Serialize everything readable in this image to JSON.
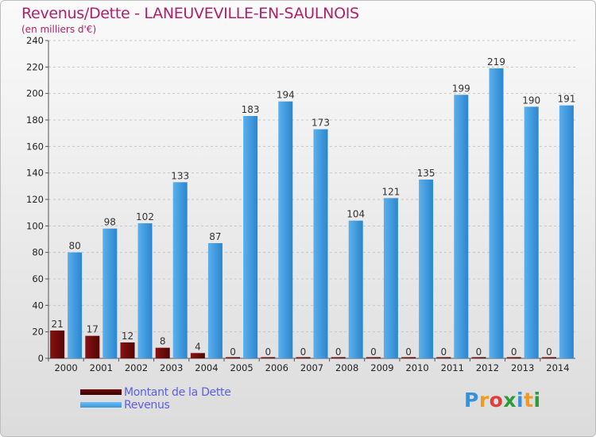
{
  "header": {
    "title": "Revenus/Dette - LANEUVEVILLE-EN-SAULNOIS",
    "subtitle": "(en milliers d'€)"
  },
  "chart_data": {
    "type": "bar",
    "categories": [
      "2000",
      "2001",
      "2002",
      "2003",
      "2004",
      "2005",
      "2006",
      "2007",
      "2008",
      "2009",
      "2010",
      "2011",
      "2012",
      "2013",
      "2014"
    ],
    "series": [
      {
        "name": "Montant de la Dette",
        "values": [
          21,
          17,
          12,
          8,
          4,
          0,
          0,
          0,
          0,
          0,
          0,
          0,
          0,
          0,
          0
        ],
        "color": "#6e0b0b"
      },
      {
        "name": "Revenus",
        "values": [
          80,
          98,
          102,
          133,
          87,
          183,
          194,
          173,
          104,
          121,
          135,
          199,
          219,
          190,
          191
        ],
        "color": "#3a97dd"
      }
    ],
    "ylim": [
      0,
      240
    ],
    "yticks": [
      0,
      20,
      40,
      60,
      80,
      100,
      120,
      140,
      160,
      180,
      200,
      220,
      240
    ],
    "grid": true,
    "legend": "bottom-left"
  },
  "colors": {
    "title": "#b0206a",
    "legend_text": "#5b5fe0"
  },
  "logo": {
    "letters": [
      {
        "ch": "P",
        "color": "#3a8fd8"
      },
      {
        "ch": "r",
        "color": "#f29a1f"
      },
      {
        "ch": "o",
        "color": "#e23c3c"
      },
      {
        "ch": "x",
        "color": "#2e9a3a"
      },
      {
        "ch": "i",
        "color": "#3a8fd8"
      },
      {
        "ch": "t",
        "color": "#f29a1f"
      },
      {
        "ch": "i",
        "color": "#2e9a3a"
      }
    ]
  }
}
